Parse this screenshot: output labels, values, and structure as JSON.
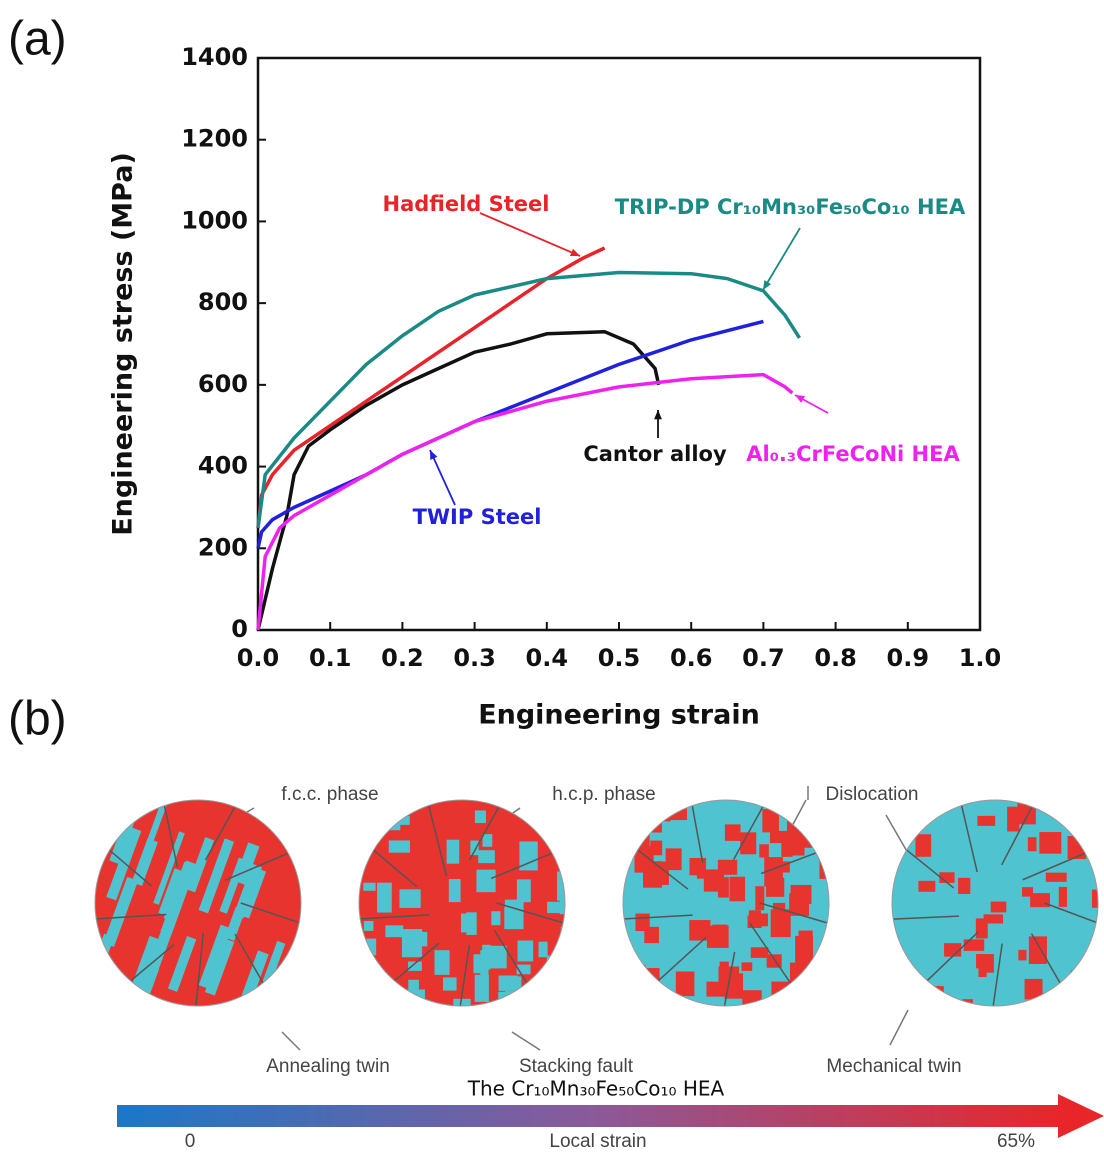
{
  "panel_labels": [
    "(a)",
    "(b)"
  ],
  "chart_data": {
    "type": "line",
    "x_label": "Engineering strain",
    "y_label": "Engineering stress (MPa)",
    "xlim": [
      0,
      1
    ],
    "ylim": [
      0,
      1400
    ],
    "xticks": [
      {
        "value": 0,
        "label": "0.0"
      },
      0.1,
      0.2,
      0.3,
      0.4,
      0.5,
      0.6,
      0.7,
      0.8,
      0.9,
      {
        "value": 1,
        "label": "1.0"
      }
    ],
    "yticks": [
      0,
      200,
      400,
      600,
      800,
      1000,
      1200,
      1400
    ],
    "series": [
      {
        "name": "Hadfield Steel",
        "color": "#e8232a",
        "x": [
          0,
          0.005,
          0.02,
          0.05,
          0.1,
          0.15,
          0.2,
          0.25,
          0.3,
          0.35,
          0.4,
          0.45,
          0.48
        ],
        "values": [
          250,
          330,
          380,
          440,
          500,
          560,
          620,
          680,
          740,
          800,
          860,
          910,
          935
        ]
      },
      {
        "name": "TRIP-DP Cr₁₀Mn₃₀Fe₅₀Co₁₀ HEA",
        "color": "#1a8a84",
        "x": [
          0,
          0.01,
          0.05,
          0.1,
          0.15,
          0.2,
          0.25,
          0.3,
          0.4,
          0.5,
          0.6,
          0.65,
          0.7,
          0.73,
          0.75
        ],
        "values": [
          250,
          380,
          470,
          560,
          650,
          720,
          780,
          820,
          860,
          875,
          872,
          860,
          830,
          770,
          715
        ]
      },
      {
        "name": "Cantor alloy",
        "color": "#111111",
        "x": [
          0,
          0.02,
          0.04,
          0.05,
          0.07,
          0.1,
          0.15,
          0.2,
          0.25,
          0.3,
          0.35,
          0.4,
          0.48,
          0.52,
          0.55,
          0.555
        ],
        "values": [
          0,
          150,
          280,
          380,
          450,
          490,
          550,
          600,
          640,
          680,
          700,
          725,
          730,
          700,
          640,
          600
        ]
      },
      {
        "name": "TWIP Steel",
        "color": "#2020dd",
        "x": [
          0,
          0.005,
          0.02,
          0.05,
          0.1,
          0.15,
          0.2,
          0.3,
          0.4,
          0.5,
          0.6,
          0.7
        ],
        "values": [
          200,
          240,
          270,
          300,
          340,
          380,
          430,
          510,
          580,
          650,
          710,
          755
        ]
      },
      {
        "name": "Al₀.₃CrFeCoNi HEA",
        "color": "#ee22ee",
        "x": [
          0,
          0.01,
          0.03,
          0.05,
          0.1,
          0.15,
          0.2,
          0.3,
          0.4,
          0.5,
          0.6,
          0.7,
          0.73,
          0.74
        ],
        "values": [
          0,
          180,
          250,
          280,
          330,
          380,
          430,
          510,
          560,
          595,
          615,
          625,
          595,
          580
        ]
      }
    ]
  },
  "diagram": {
    "labels": [
      "f.c.c. phase",
      "h.c.p. phase",
      "Dislocation",
      "Annealing twin",
      "Stacking fault",
      "Mechanical twin"
    ],
    "caption": "The Cr₁₀Mn₃₀Fe₅₀Co₁₀ HEA",
    "scale": {
      "start": "0",
      "title": "Local strain",
      "end": "65%"
    }
  }
}
